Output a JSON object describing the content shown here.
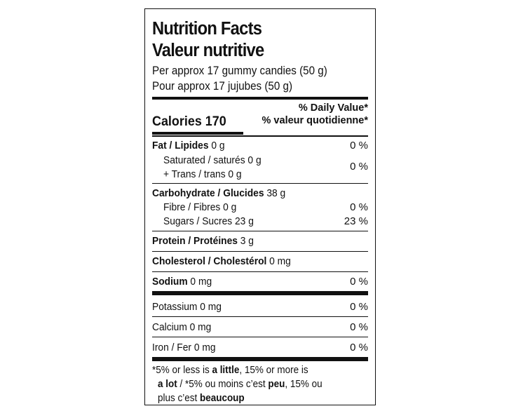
{
  "title_en": "Nutrition Facts",
  "title_fr": "Valeur nutritive",
  "serving_en": "Per approx 17 gummy candies (50 g)",
  "serving_fr": "Pour approx 17 jujubes (50 g)",
  "calories_label": "Calories 170",
  "dv_en": "% Daily Value*",
  "dv_fr": "% valeur quotidienne*",
  "fat": {
    "name": "Fat / Lipides",
    "amount": " 0 g",
    "pct": "0 %"
  },
  "saturated": {
    "line1": "Saturated / saturés 0 g",
    "line2": "+ Trans / trans 0 g",
    "pct": "0 %"
  },
  "carbohydrate": {
    "name": "Carbohydrate / Glucides",
    "amount": " 38 g"
  },
  "fibre": {
    "label": "Fibre / Fibres 0 g",
    "pct": "0 %"
  },
  "sugars": {
    "label": "Sugars / Sucres 23 g",
    "pct": "23 %"
  },
  "protein": {
    "name": "Protein / Protéines",
    "amount": " 3 g"
  },
  "cholesterol": {
    "name": "Cholesterol / Cholestérol",
    "amount": " 0 mg"
  },
  "sodium": {
    "name": "Sodium",
    "amount": " 0 mg",
    "pct": "0 %"
  },
  "potassium": {
    "label": "Potassium 0 mg",
    "pct": "0 %"
  },
  "calcium": {
    "label": "Calcium 0 mg",
    "pct": "0 %"
  },
  "iron": {
    "label": "Iron / Fer 0 mg",
    "pct": "0 %"
  },
  "footnote": {
    "l1_a": "*5% or less is ",
    "l1_b": "a little",
    "l1_c": ", 15% or more is",
    "l2_a": "a lot",
    "l2_b": " / *5% ou moins c’est ",
    "l2_c": "peu",
    "l2_d": ", 15% ou",
    "l3_a": "plus c’est ",
    "l3_b": "beaucoup"
  }
}
